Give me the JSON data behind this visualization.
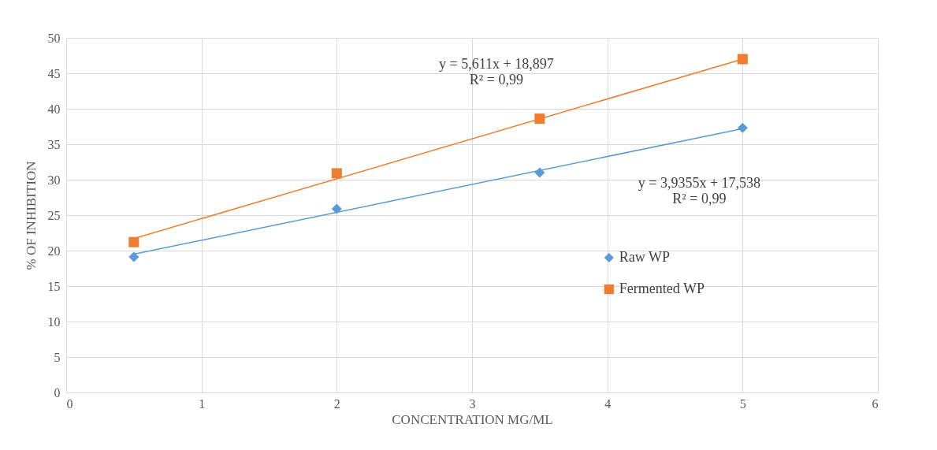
{
  "chart_data": {
    "type": "scatter",
    "xlabel": "CONCENTRATION MG/ML",
    "ylabel": "% OF INHIBITION",
    "xlim": [
      0,
      6
    ],
    "xticks": [
      0,
      1,
      2,
      3,
      4,
      5,
      6
    ],
    "ylim": [
      0,
      50
    ],
    "yticks": [
      0,
      5,
      10,
      15,
      20,
      25,
      30,
      35,
      40,
      45,
      50
    ],
    "grid": true,
    "legend": "right",
    "series": [
      {
        "name": "Raw WP",
        "color": "#5b9bd5",
        "marker": "diamond",
        "x": [
          0.5,
          2,
          3.5,
          5
        ],
        "values": [
          19.1,
          25.9,
          31.0,
          37.3
        ]
      },
      {
        "name": "Fermented WP",
        "color": "#ed7d31",
        "marker": "square",
        "x": [
          0.5,
          2,
          3.5,
          5
        ],
        "values": [
          21.2,
          30.9,
          38.6,
          47.0
        ]
      },
      {
        "color": "#5b9bd5",
        "type": "line",
        "marker": "none",
        "line_style": "solid",
        "x": [
          0.5,
          5
        ],
        "values": [
          19.5,
          37.2
        ]
      },
      {
        "color": "#ed7d31",
        "type": "line",
        "marker": "none",
        "line_style": "solid",
        "x": [
          0.5,
          5
        ],
        "values": [
          21.7,
          47.0
        ]
      }
    ],
    "annotations": [
      "y = 5,611x + 18,897",
      "R² = 0,99",
      "y = 3,9355x + 17,538",
      "R² = 0,99"
    ]
  }
}
